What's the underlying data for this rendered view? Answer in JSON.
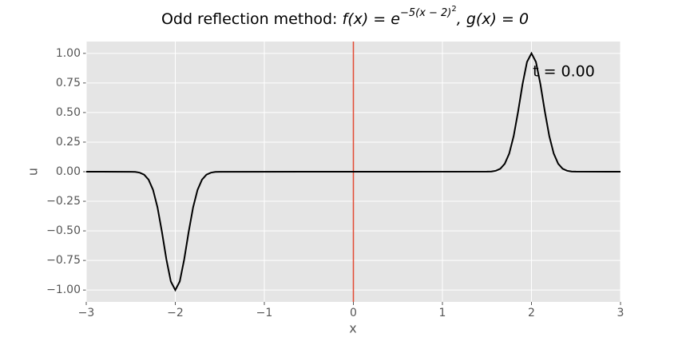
{
  "chart_data": {
    "type": "line",
    "title": {
      "text": "Odd reflection method: ",
      "f": "f(x) = e",
      "exp": "−5(x − 2)",
      "exp2": "2",
      "g": ", g(x) = 0"
    },
    "x_label": "x",
    "y_label": "u",
    "annotation": "t = 0.00",
    "vline": {
      "x": 0,
      "color": "#e24a33"
    },
    "x": [
      -3,
      -2.5,
      -2.45,
      -2.4,
      -2.35,
      -2.3,
      -2.25,
      -2.2,
      -2.15,
      -2.1,
      -2.05,
      -2,
      -1.95,
      -1.9,
      -1.85,
      -1.8,
      -1.75,
      -1.7,
      -1.65,
      -1.6,
      -1.55,
      -1.5,
      0,
      1.5,
      1.55,
      1.6,
      1.65,
      1.7,
      1.75,
      1.8,
      1.85,
      1.9,
      1.95,
      2,
      2.05,
      2.1,
      2.15,
      2.2,
      2.25,
      2.3,
      2.35,
      2.4,
      2.45,
      2.5,
      3
    ],
    "series": [
      {
        "color": "#000000",
        "values": [
          0,
          -0.001,
          -0.002,
          -0.008,
          -0.025,
          -0.067,
          -0.153,
          -0.301,
          -0.509,
          -0.741,
          -0.928,
          -1,
          -0.928,
          -0.741,
          -0.509,
          -0.301,
          -0.153,
          -0.067,
          -0.025,
          -0.008,
          -0.002,
          -0.001,
          0,
          0.001,
          0.002,
          0.008,
          0.025,
          0.067,
          0.153,
          0.301,
          0.509,
          0.741,
          0.928,
          1,
          0.928,
          0.741,
          0.509,
          0.301,
          0.153,
          0.067,
          0.025,
          0.008,
          0.002,
          0.001,
          0
        ]
      }
    ],
    "xlim": [
      -3,
      3
    ],
    "ylim": [
      -1.1,
      1.1
    ],
    "xticks": [
      {
        "value": -3,
        "label": "−3"
      },
      {
        "value": -2,
        "label": "−2"
      },
      {
        "value": -1,
        "label": "−1"
      },
      0,
      1,
      2,
      3
    ],
    "yticks": [
      {
        "value": -1,
        "label": "−1.00"
      },
      {
        "value": -0.75,
        "label": "−0.75"
      },
      {
        "value": -0.5,
        "label": "−0.50"
      },
      {
        "value": -0.25,
        "label": "−0.25"
      },
      {
        "value": 0,
        "label": "0.00"
      },
      {
        "value": 0.25,
        "label": "0.25"
      },
      {
        "value": 0.5,
        "label": "0.50"
      },
      {
        "value": 0.75,
        "label": "0.75"
      },
      {
        "value": 1,
        "label": "1.00"
      }
    ],
    "grid": true,
    "background": "#e5e5e5"
  }
}
